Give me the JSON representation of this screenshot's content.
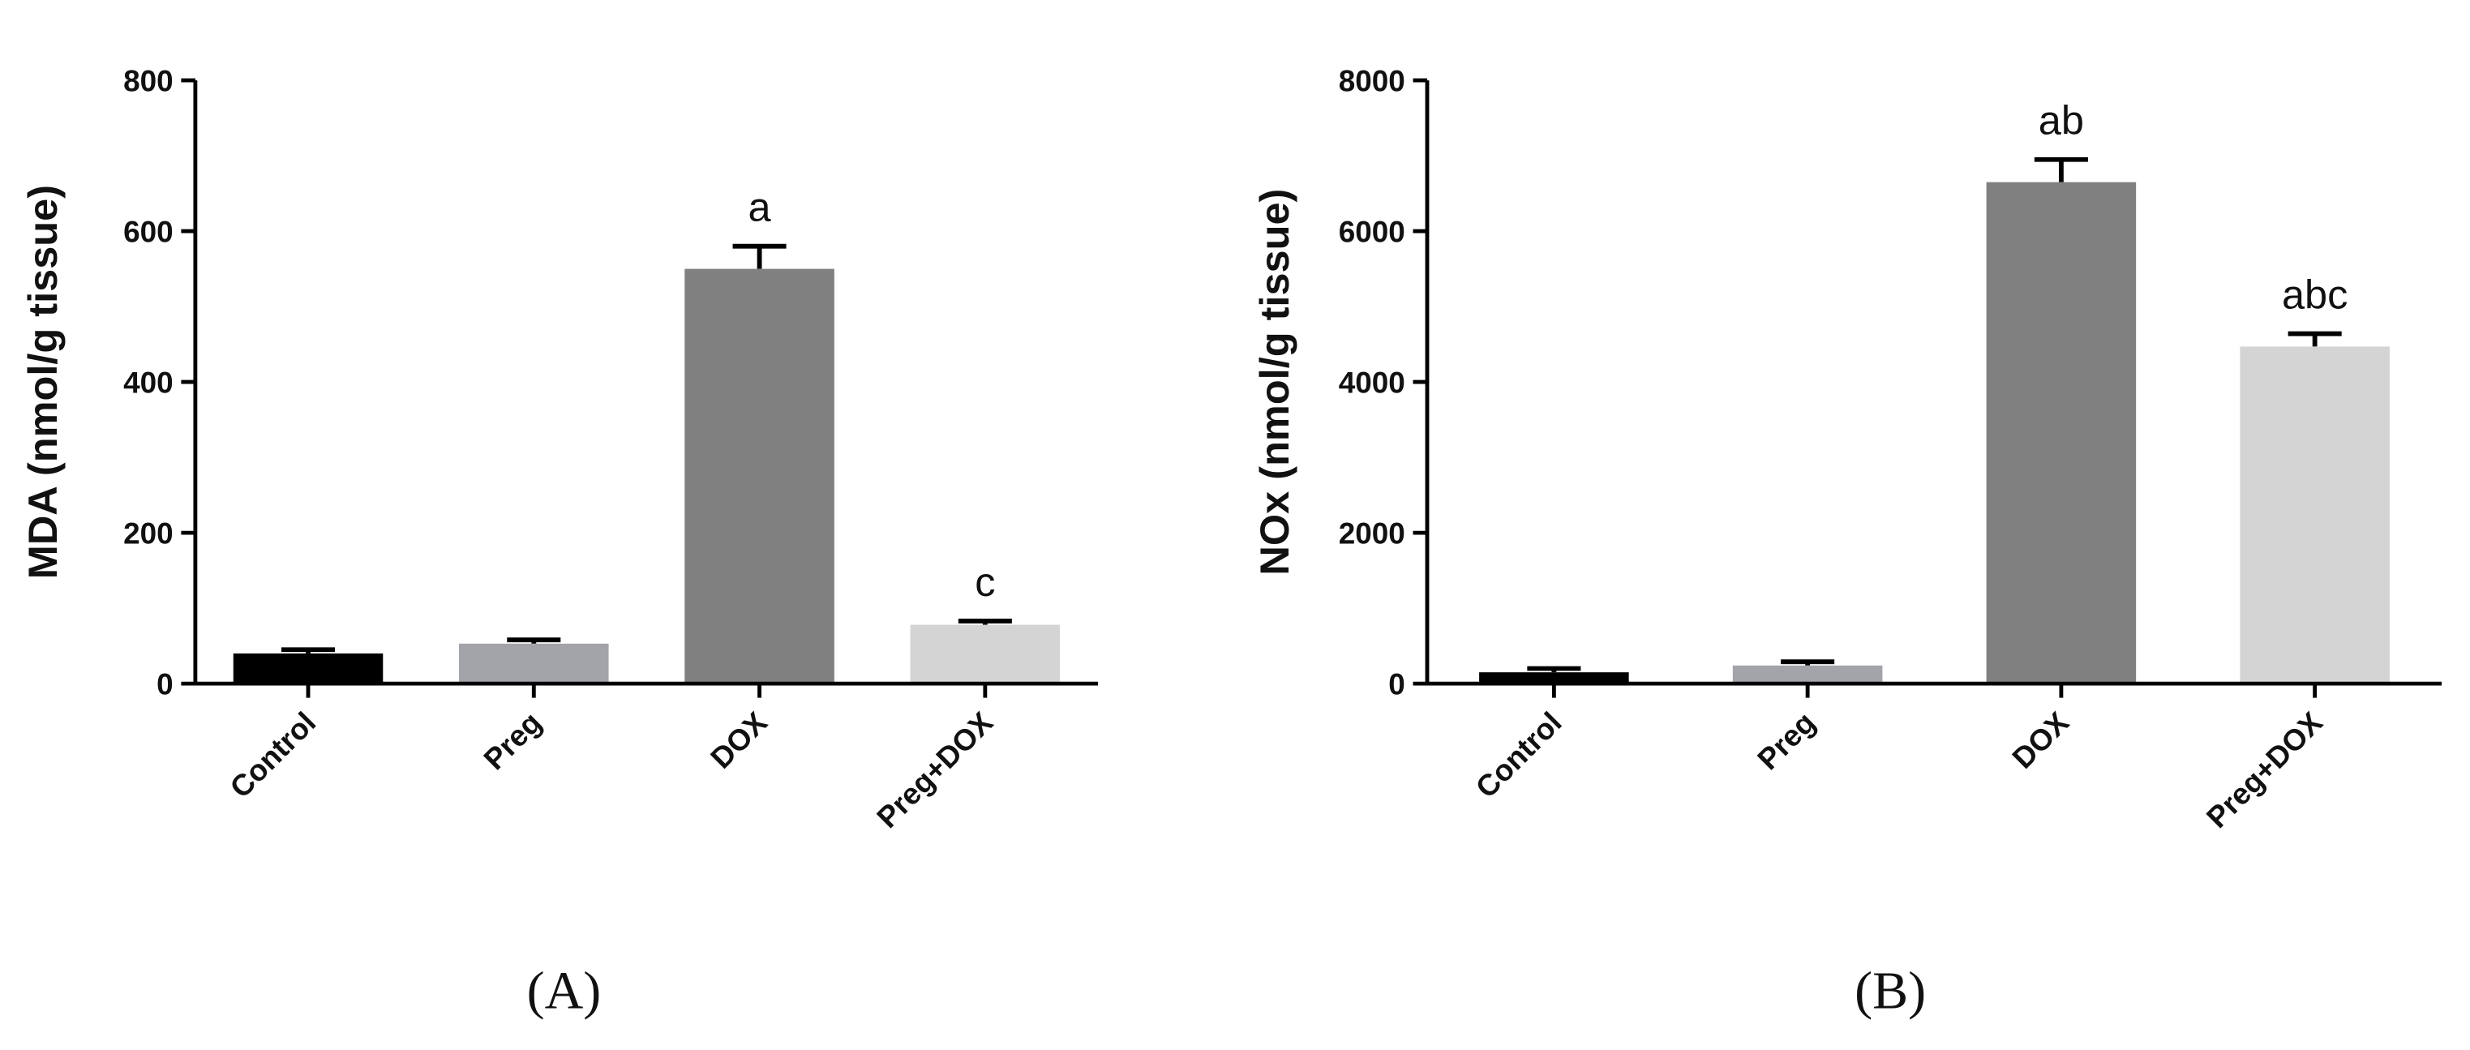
{
  "chart_data": [
    {
      "type": "bar",
      "panel": "(A)",
      "y_label": "MDA (nmol/g tissue)",
      "categories": [
        "Control",
        "Preg",
        "DOX",
        "Preg+DOX"
      ],
      "values": [
        40,
        53,
        550,
        78
      ],
      "errors": [
        5,
        5,
        30,
        5
      ],
      "annotations": [
        null,
        null,
        "a",
        "c"
      ],
      "colors": [
        "#000000",
        "#a3a3aa",
        "#808080",
        "#d4d4d4"
      ],
      "ylim": [
        0,
        800
      ],
      "yticks": [
        0,
        200,
        400,
        600,
        800
      ]
    },
    {
      "type": "bar",
      "panel": "(B)",
      "y_label": "NOx (nmol/g tissue)",
      "categories": [
        "Control",
        "Preg",
        "DOX",
        "Preg+DOX"
      ],
      "values": [
        150,
        240,
        6650,
        4470
      ],
      "errors": [
        50,
        50,
        300,
        170
      ],
      "annotations": [
        null,
        null,
        "ab",
        "abc"
      ],
      "colors": [
        "#000000",
        "#a3a3aa",
        "#808080",
        "#d4d4d4"
      ],
      "ylim": [
        0,
        8000
      ],
      "yticks": [
        0,
        2000,
        4000,
        6000,
        8000
      ]
    }
  ]
}
